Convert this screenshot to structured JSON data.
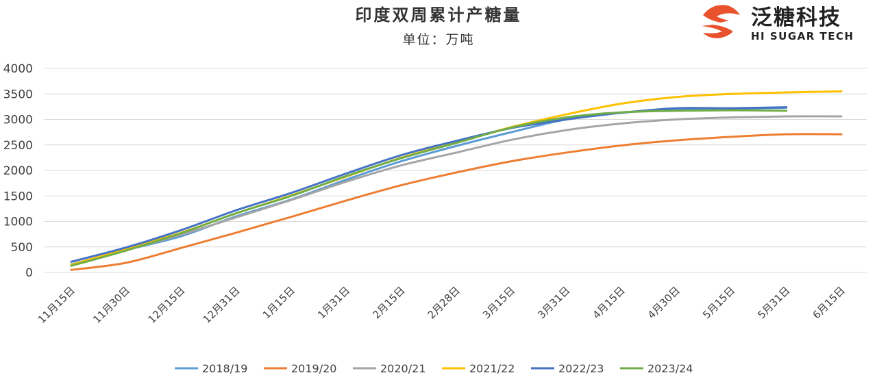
{
  "chart_data": {
    "type": "line",
    "title": "印度双周累计产糖量",
    "subtitle": "单位：万吨",
    "ylim": [
      0,
      4000
    ],
    "yticks": [
      0,
      500,
      1000,
      1500,
      2000,
      2500,
      3000,
      3500,
      4000
    ],
    "categories": [
      "11月15日",
      "11月30日",
      "12月15日",
      "12月31日",
      "1月15日",
      "1月31日",
      "2月15日",
      "2月28日",
      "3月15日",
      "3月31日",
      "4月15日",
      "4月30日",
      "5月15日",
      "5月31日",
      "6月15日"
    ],
    "series": [
      {
        "name": "2018/19",
        "color": "#5B9BD5",
        "values": [
          160,
          440,
          710,
          1100,
          1430,
          1820,
          2180,
          2480,
          2750,
          3000,
          3130,
          3200,
          3210,
          3230,
          null
        ]
      },
      {
        "name": "2019/20",
        "color": "#ED7D31",
        "values": [
          50,
          190,
          480,
          780,
          1090,
          1410,
          1710,
          1960,
          2180,
          2350,
          2490,
          2590,
          2660,
          2710,
          2710
        ]
      },
      {
        "name": "2020/21",
        "color": "#A5A5A5",
        "values": [
          140,
          440,
          740,
          1080,
          1420,
          1780,
          2100,
          2350,
          2600,
          2790,
          2920,
          3000,
          3040,
          3060,
          3060
        ]
      },
      {
        "name": "2021/22",
        "color": "#FFC000",
        "values": [
          150,
          460,
          780,
          1160,
          1510,
          1880,
          2250,
          2550,
          2850,
          3100,
          3310,
          3440,
          3500,
          3530,
          3550
        ]
      },
      {
        "name": "2022/23",
        "color": "#4472C4",
        "values": [
          210,
          490,
          830,
          1220,
          1560,
          1940,
          2300,
          2580,
          2830,
          3000,
          3130,
          3220,
          3220,
          3240,
          null
        ]
      },
      {
        "name": "2023/24",
        "color": "#70AD47",
        "values": [
          130,
          430,
          770,
          1160,
          1500,
          1890,
          2240,
          2540,
          2840,
          3040,
          3140,
          3170,
          3180,
          3170,
          null
        ]
      }
    ]
  },
  "brand": {
    "name_cn": "泛糖科技",
    "name_en": "HI SUGAR TECH",
    "logo_color": "#E8532E"
  }
}
